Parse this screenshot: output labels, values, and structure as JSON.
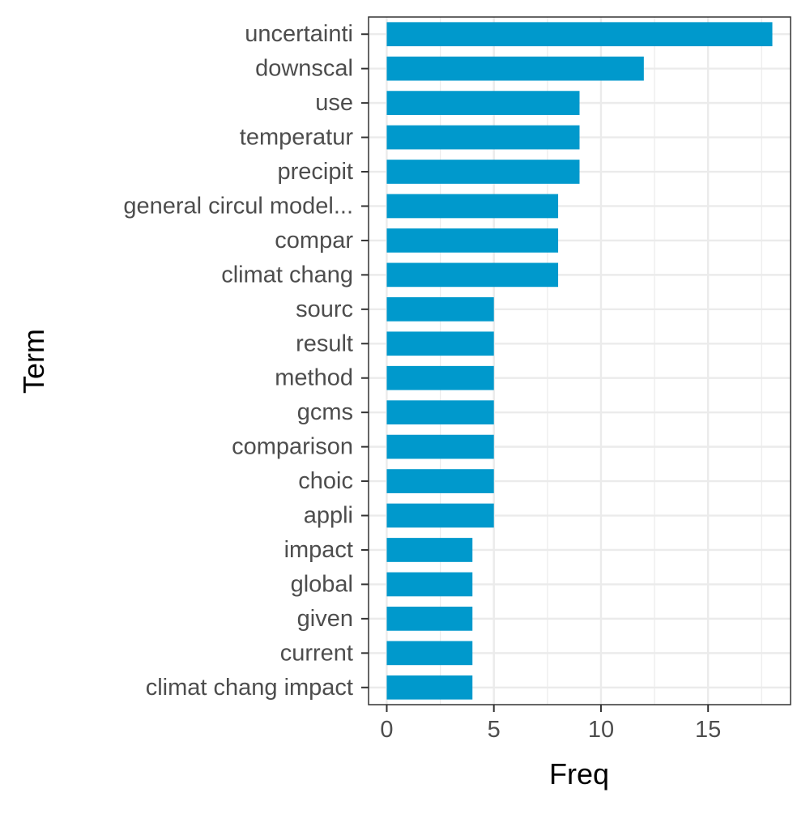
{
  "chart_data": {
    "type": "bar",
    "orientation": "horizontal",
    "xlabel": "Freq",
    "ylabel": "Term",
    "categories": [
      "uncertainti",
      "downscal",
      "use",
      "temperatur",
      "precipit",
      "general circul model...",
      "compar",
      "climat chang",
      "sourc",
      "result",
      "method",
      "gcms",
      "comparison",
      "choic",
      "appli",
      "impact",
      "global",
      "given",
      "current",
      "climat chang impact"
    ],
    "values": [
      18,
      12,
      9,
      9,
      9,
      8,
      8,
      8,
      5,
      5,
      5,
      5,
      5,
      5,
      5,
      4,
      4,
      4,
      4,
      4
    ],
    "xlim": [
      -0.85,
      18.85
    ],
    "x_ticks": [
      0,
      5,
      10,
      15
    ],
    "x_tick_labels": [
      "0",
      "5",
      "10",
      "15"
    ],
    "grid": true,
    "bar_color": "#0099CC",
    "grid_color": "#EBEBEB",
    "panel_border_color": "#333333"
  }
}
